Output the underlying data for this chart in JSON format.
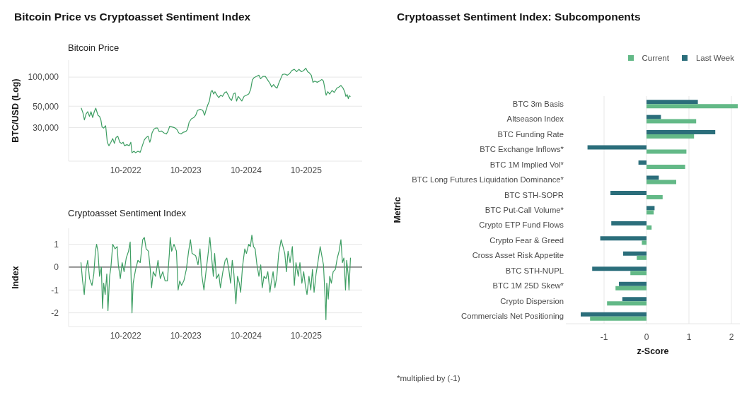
{
  "chart_data": [
    {
      "type": "line",
      "title": "Bitcoin Price vs Cryptoasset Sentiment Index",
      "subtitle": "Bitcoin Price",
      "ylabel": "BTC/USD (Log)",
      "color": "#3e9e63",
      "x": [
        "2022-01-04",
        "2022-01-14",
        "2022-01-23",
        "2022-02-02",
        "2022-02-12",
        "2022-02-23",
        "2022-03-04",
        "2022-03-14",
        "2022-03-24",
        "2022-04-02",
        "2022-04-15",
        "2022-04-25",
        "2022-05-03",
        "2022-05-10",
        "2022-05-20",
        "2022-06-01",
        "2022-06-11",
        "2022-06-21",
        "2022-07-03",
        "2022-07-14",
        "2022-07-24",
        "2022-08-03",
        "2022-08-14",
        "2022-08-26",
        "2022-09-05",
        "2022-09-15",
        "2022-09-24",
        "2022-10-08",
        "2022-10-22",
        "2022-11-01",
        "2022-11-08",
        "2022-11-20",
        "2022-11-30",
        "2022-12-14",
        "2022-12-28",
        "2023-01-12",
        "2023-01-22",
        "2023-02-02",
        "2023-02-14",
        "2023-02-24",
        "2023-03-03",
        "2023-03-10",
        "2023-03-20",
        "2023-03-31",
        "2023-04-12",
        "2023-04-22",
        "2023-05-06",
        "2023-05-21",
        "2023-06-04",
        "2023-06-14",
        "2023-06-25",
        "2023-07-10",
        "2023-07-24",
        "2023-08-07",
        "2023-08-19",
        "2023-09-02",
        "2023-09-16",
        "2023-10-01",
        "2023-10-11",
        "2023-10-21",
        "2023-11-04",
        "2023-11-19",
        "2023-11-30",
        "2023-12-11",
        "2023-12-29",
        "2024-01-12",
        "2024-01-23",
        "2024-02-02",
        "2024-02-12",
        "2024-02-21",
        "2024-03-02",
        "2024-03-09",
        "2024-03-18",
        "2024-03-26",
        "2024-04-07",
        "2024-04-18",
        "2024-04-30",
        "2024-05-11",
        "2024-05-23",
        "2024-06-03",
        "2024-06-15",
        "2024-06-25",
        "2024-07-05",
        "2024-07-16",
        "2024-07-26",
        "2024-08-04",
        "2024-08-14",
        "2024-08-25",
        "2024-09-05",
        "2024-09-19",
        "2024-10-03",
        "2024-10-17",
        "2024-10-29",
        "2024-11-08",
        "2024-11-19",
        "2024-12-04",
        "2024-12-18",
        "2024-12-28",
        "2025-01-11",
        "2025-01-26",
        "2025-02-09",
        "2025-02-23",
        "2025-03-05",
        "2025-03-17",
        "2025-03-28",
        "2025-04-07",
        "2025-04-17",
        "2025-04-29",
        "2025-05-10",
        "2025-05-24",
        "2025-06-08",
        "2025-06-22",
        "2025-07-06",
        "2025-07-21",
        "2025-08-04",
        "2025-08-18",
        "2025-09-02",
        "2025-09-16",
        "2025-09-29",
        "2025-10-10",
        "2025-10-20",
        "2025-11-01",
        "2025-11-11",
        "2025-11-22",
        "2025-12-07",
        "2025-12-21",
        "2026-01-04",
        "2026-01-14",
        "2026-01-23",
        "2026-01-30",
        "2026-02-09",
        "2026-02-21",
        "2026-03-07",
        "2026-03-21",
        "2026-04-05",
        "2026-04-19",
        "2026-04-30",
        "2026-05-13",
        "2026-05-23",
        "2026-05-30",
        "2026-06-07",
        "2026-06-14",
        "2026-06-19",
        "2026-06-25"
      ],
      "values": [
        47700,
        42700,
        36100,
        41500,
        43900,
        39200,
        43900,
        38200,
        43900,
        47700,
        40400,
        39200,
        36100,
        30500,
        29700,
        31400,
        21200,
        19500,
        21200,
        23100,
        20600,
        23700,
        24400,
        21200,
        20600,
        21200,
        19500,
        20000,
        19500,
        21200,
        16500,
        17100,
        16500,
        17100,
        16700,
        20000,
        22400,
        23700,
        24400,
        21200,
        23100,
        26500,
        28800,
        29700,
        29700,
        27300,
        27700,
        26500,
        25800,
        27300,
        31000,
        30500,
        30000,
        28800,
        26500,
        25800,
        26900,
        27300,
        28800,
        34100,
        37100,
        38200,
        40300,
        45200,
        46400,
        45200,
        40300,
        46400,
        51900,
        56500,
        70700,
        72700,
        66800,
        70700,
        65000,
        61400,
        65000,
        63200,
        68700,
        70700,
        65000,
        59700,
        57300,
        66800,
        68700,
        56500,
        63200,
        59700,
        56500,
        63200,
        65000,
        66800,
        74700,
        93500,
        98900,
        101700,
        104600,
        96200,
        101700,
        101700,
        93500,
        86000,
        79000,
        83600,
        79000,
        76900,
        86000,
        96200,
        106300,
        107500,
        104600,
        108700,
        117000,
        120300,
        113700,
        120300,
        113700,
        117000,
        123700,
        113700,
        110600,
        104600,
        88400,
        90900,
        88400,
        90900,
        94600,
        90900,
        74700,
        65000,
        70700,
        66800,
        72700,
        69500,
        76900,
        79000,
        81900,
        76900,
        70700,
        63200,
        65900,
        59700,
        64100,
        63200
      ],
      "xlim": [
        "2021-10-19",
        "2026-09-06"
      ],
      "xticks": [
        {
          "value": "2022-10",
          "label": "10-2022"
        },
        {
          "value": "2023-10",
          "label": "10-2023"
        },
        {
          "value": "2024-10",
          "label": "10-2024"
        },
        {
          "value": "2025-10",
          "label": "10-2025"
        }
      ],
      "ylim": [
        13500,
        150000
      ],
      "yticks": [
        {
          "value": 30000,
          "label": "30,000"
        },
        {
          "value": 50000,
          "label": "50,000"
        },
        {
          "value": 100000,
          "label": "100,000"
        }
      ],
      "log": true,
      "grid": "y"
    },
    {
      "type": "line",
      "title": "Cryptoasset Sentiment Index",
      "ylabel": "Index",
      "color": "#3e9e63",
      "x": [
        "2022-01-02",
        "2022-01-12",
        "2022-01-22",
        "2022-02-02",
        "2022-02-12",
        "2022-02-23",
        "2022-03-10",
        "2022-03-21",
        "2022-03-31",
        "2022-04-07",
        "2022-04-15",
        "2022-04-25",
        "2022-05-06",
        "2022-05-13",
        "2022-05-20",
        "2022-05-29",
        "2022-06-08",
        "2022-06-15",
        "2022-06-25",
        "2022-07-03",
        "2022-07-14",
        "2022-07-28",
        "2022-08-10",
        "2022-08-17",
        "2022-08-29",
        "2022-09-09",
        "2022-09-21",
        "2022-10-04",
        "2022-10-18",
        "2022-10-28",
        "2022-11-08",
        "2022-11-15",
        "2022-11-30",
        "2022-12-14",
        "2022-12-28",
        "2023-01-12",
        "2023-01-22",
        "2023-02-02",
        "2023-02-16",
        "2023-02-27",
        "2023-03-07",
        "2023-03-17",
        "2023-03-31",
        "2023-04-15",
        "2023-04-29",
        "2023-05-14",
        "2023-05-28",
        "2023-06-11",
        "2023-06-23",
        "2023-06-28",
        "2023-07-07",
        "2023-07-21",
        "2023-08-05",
        "2023-08-15",
        "2023-08-25",
        "2023-09-05",
        "2023-09-19",
        "2023-10-04",
        "2023-10-18",
        "2023-10-29",
        "2023-11-08",
        "2023-11-30",
        "2023-12-14",
        "2023-12-26",
        "2024-01-05",
        "2024-01-19",
        "2024-02-02",
        "2024-02-12",
        "2024-02-24",
        "2024-03-06",
        "2024-03-16",
        "2024-03-24",
        "2024-04-04",
        "2024-04-18",
        "2024-04-28",
        "2024-05-13",
        "2024-05-27",
        "2024-06-06",
        "2024-06-18",
        "2024-06-29",
        "2024-07-09",
        "2024-07-19",
        "2024-07-31",
        "2024-08-10",
        "2024-08-21",
        "2024-08-29",
        "2024-09-09",
        "2024-09-23",
        "2024-10-03",
        "2024-10-17",
        "2024-10-27",
        "2024-11-05",
        "2024-11-15",
        "2024-11-25",
        "2024-12-06",
        "2024-12-18",
        "2024-12-29",
        "2025-01-07",
        "2025-01-18",
        "2025-01-30",
        "2025-02-10",
        "2025-02-23",
        "2025-03-02",
        "2025-03-14",
        "2025-03-25",
        "2025-04-06",
        "2025-04-17",
        "2025-05-02",
        "2025-05-13",
        "2025-05-24",
        "2025-06-03",
        "2025-06-13",
        "2025-06-25",
        "2025-07-09",
        "2025-07-21",
        "2025-07-31",
        "2025-08-14",
        "2025-08-24",
        "2025-09-05",
        "2025-09-16",
        "2025-09-26",
        "2025-10-06",
        "2025-10-18",
        "2025-10-29",
        "2025-11-08",
        "2025-11-18",
        "2025-11-30",
        "2025-12-11",
        "2025-12-25",
        "2026-01-04",
        "2026-01-14",
        "2026-01-23",
        "2026-01-29",
        "2026-02-03",
        "2026-02-12",
        "2026-02-21",
        "2026-03-03",
        "2026-03-14",
        "2026-03-27",
        "2026-04-08",
        "2026-04-19",
        "2026-04-30",
        "2026-05-09",
        "2026-05-18",
        "2026-05-28",
        "2026-06-04",
        "2026-06-14",
        "2026-06-18",
        "2026-06-27"
      ],
      "values": [
        0.2,
        -0.6,
        -1.2,
        -0.1,
        0.3,
        -0.5,
        -0.8,
        -0.3,
        0.7,
        1.0,
        0.7,
        -0.4,
        0.0,
        -1.8,
        -0.7,
        -1.2,
        -0.3,
        -1.9,
        -0.4,
        0.0,
        1.0,
        0.8,
        0.9,
        0.1,
        -0.5,
        0.2,
        -0.2,
        0.4,
        0.7,
        1.1,
        -2.0,
        -0.7,
        -0.1,
        0.3,
        0.2,
        1.2,
        1.3,
        0.8,
        0.7,
        -0.1,
        -0.9,
        -0.2,
        -0.4,
        0.3,
        -0.5,
        -0.2,
        -0.6,
        -0.6,
        0.6,
        1.3,
        0.7,
        1.0,
        0.7,
        -1.0,
        -0.6,
        -0.8,
        -0.6,
        -0.1,
        0.7,
        1.2,
        0.6,
        0.5,
        0.1,
        0.8,
        -0.3,
        -1.0,
        -0.1,
        0.5,
        1.3,
        0.4,
        -0.4,
        0.6,
        -0.5,
        -0.3,
        -0.9,
        -0.2,
        0.3,
        0.4,
        -0.1,
        -0.7,
        0.3,
        -0.3,
        -1.6,
        -0.4,
        -0.7,
        -1.1,
        0.0,
        0.8,
        0.6,
        1.0,
        0.9,
        1.4,
        0.9,
        0.8,
        0.1,
        -0.4,
        0.1,
        -0.9,
        -0.4,
        -0.5,
        -0.2,
        -1.1,
        -0.7,
        -0.2,
        -0.9,
        -0.4,
        0.6,
        1.2,
        0.9,
        0.6,
        -0.2,
        0.7,
        0.2,
        0.9,
        -0.8,
        0.2,
        -0.4,
        0.2,
        -0.7,
        -0.2,
        -0.8,
        -1.2,
        -0.4,
        -1.0,
        -0.1,
        -1.1,
        -0.3,
        0.2,
        0.9,
        0.5,
        0.1,
        -1.2,
        -2.3,
        -0.7,
        -1.4,
        -0.4,
        -0.7,
        -0.2,
        -0.1,
        0.4,
        0.7,
        1.2,
        0.2,
        0.4,
        -1.0,
        0.3,
        -0.4,
        -1.0,
        0.4
      ],
      "xlim": [
        "2021-10-19",
        "2026-09-06"
      ],
      "xticks": [
        {
          "value": "2022-10",
          "label": "10-2022"
        },
        {
          "value": "2023-10",
          "label": "10-2023"
        },
        {
          "value": "2024-10",
          "label": "10-2024"
        },
        {
          "value": "2025-10",
          "label": "10-2025"
        }
      ],
      "ylim": [
        -2.6,
        1.7
      ],
      "yticks": [
        -2,
        -1,
        0,
        1
      ],
      "grid": "y",
      "ref_lines": [
        {
          "axis": "y",
          "value": 0,
          "color": "#555555"
        }
      ]
    },
    {
      "type": "bar",
      "orientation": "horizontal",
      "title": "Cryptoasset Sentiment Index: Subcomponents",
      "xlabel": "z-Score",
      "ylabel": "Metric",
      "categories": [
        "BTC 3m Basis",
        "Altseason Index",
        "BTC Funding Rate",
        "BTC Exchange Inflows*",
        "BTC 1M Implied Vol*",
        "BTC Long Futures Liquidation Dominance*",
        "BTC STH-SOPR",
        "BTC Put-Call Volume*",
        "Crypto ETP Fund Flows",
        "Crypto Fear & Greed",
        "Cross Asset Risk Appetite",
        "BTC STH-NUPL",
        "BTC 1M 25D Skew*",
        "Crypto Dispersion",
        "Commercials Net Positioning"
      ],
      "series": [
        {
          "name": "Current",
          "color": "#63b987",
          "values": [
            2.15,
            1.17,
            1.12,
            0.94,
            0.91,
            0.7,
            0.38,
            0.17,
            0.12,
            -0.11,
            -0.23,
            -0.38,
            -0.73,
            -0.93,
            -1.33
          ]
        },
        {
          "name": "Last Week",
          "color": "#2b6e7b",
          "values": [
            1.21,
            0.34,
            1.62,
            -1.39,
            -0.19,
            0.29,
            -0.85,
            0.19,
            -0.83,
            -1.09,
            -0.55,
            -1.28,
            -0.65,
            -0.57,
            -1.55
          ]
        }
      ],
      "xlim": [
        -1.9,
        2.2
      ],
      "xticks": [
        -1,
        0,
        1,
        2
      ],
      "grid": "x",
      "legend": "top right",
      "annotations": [
        "*multiplied by (-1)"
      ]
    }
  ]
}
